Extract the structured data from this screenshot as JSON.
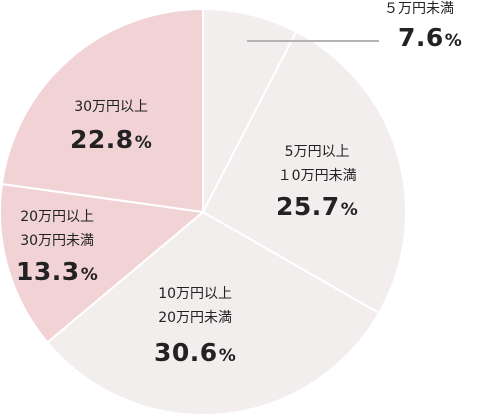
{
  "chart_data": {
    "type": "pie",
    "title": "",
    "slices": [
      {
        "label_lines": [
          "５万円未満"
        ],
        "value": 7.6,
        "value_text": "7.6",
        "unit": "%",
        "color": "#f2eeed"
      },
      {
        "label_lines": [
          "5万円以上",
          "１0万円未満"
        ],
        "value": 25.7,
        "value_text": "25.7",
        "unit": "%",
        "color": "#f2eeed"
      },
      {
        "label_lines": [
          "10万円以上",
          "20万円未満"
        ],
        "value": 30.6,
        "value_text": "30.6",
        "unit": "%",
        "color": "#f2eeed"
      },
      {
        "label_lines": [
          "20万円以上",
          "30万円未満"
        ],
        "value": 13.3,
        "value_text": "13.3",
        "unit": "%",
        "color": "#f2d3d5"
      },
      {
        "label_lines": [
          "30万円以上"
        ],
        "value": 22.8,
        "value_text": "22.8",
        "unit": "%",
        "color": "#f2d3d5"
      }
    ],
    "start_angle_deg": 0,
    "direction": "clockwise",
    "slice_border_color": "#ffffff",
    "leader_line_color": "#b3b3b3"
  }
}
